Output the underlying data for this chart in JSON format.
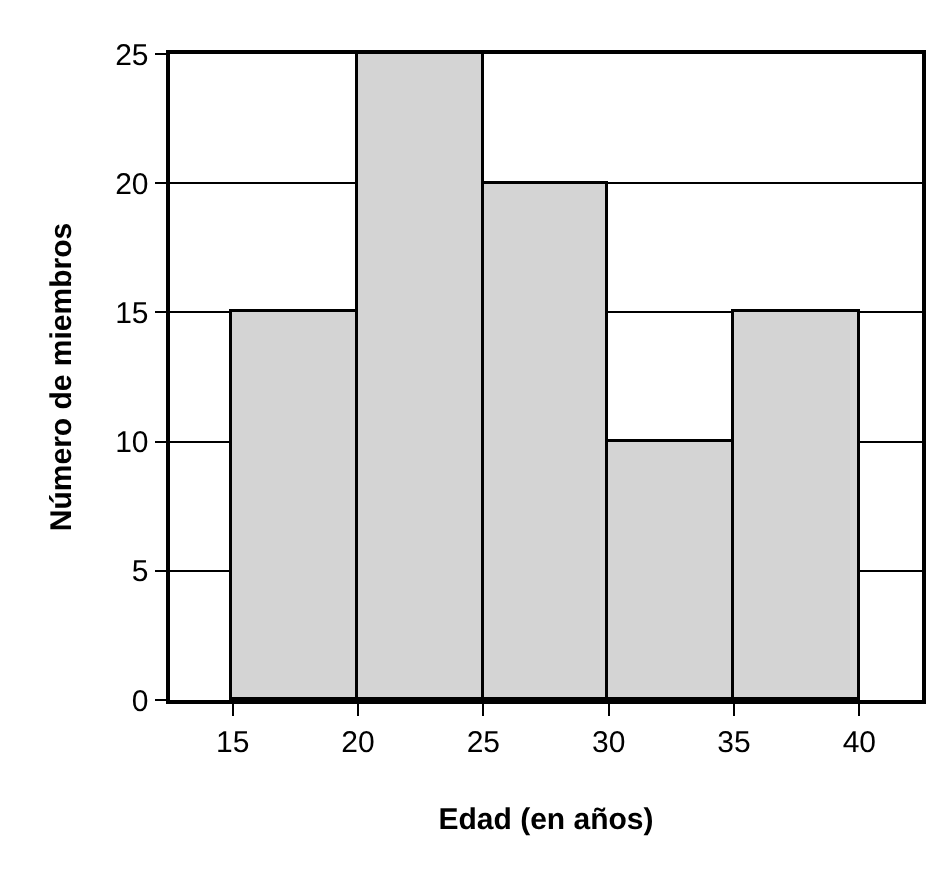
{
  "chart_data": {
    "type": "histogram",
    "xlabel": "Edad (en años)",
    "ylabel": "Número de miembros",
    "bins": [
      15,
      20,
      25,
      30,
      35,
      40
    ],
    "values": [
      15,
      25,
      20,
      10,
      15
    ],
    "color": "#d4d4d4",
    "xlim": [
      12.5,
      42.5
    ],
    "xticks": [
      15,
      20,
      25,
      30,
      35,
      40
    ],
    "ylim": [
      0,
      25
    ],
    "yticks": [
      0,
      5,
      10,
      15,
      20,
      25
    ],
    "grid": "y"
  }
}
